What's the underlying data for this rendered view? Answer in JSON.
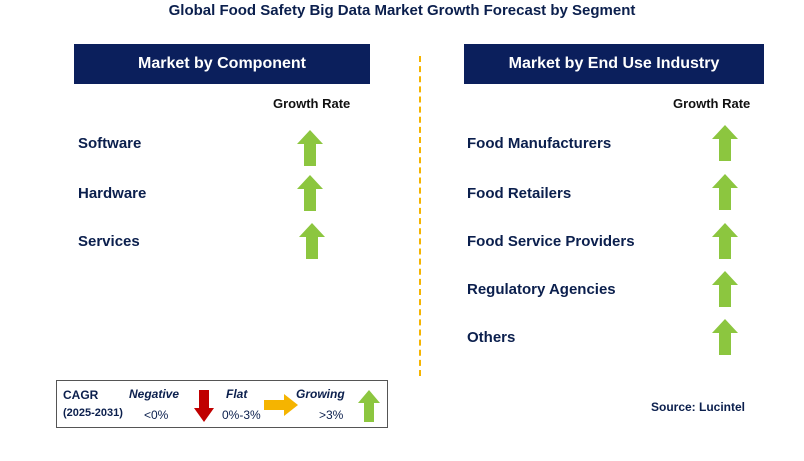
{
  "title": "Global Food Safety Big Data Market Growth Forecast by Segment",
  "left_panel": {
    "header": "Market by Component",
    "growth_label": "Growth Rate",
    "rows": [
      {
        "label": "Software",
        "trend": "growing"
      },
      {
        "label": "Hardware",
        "trend": "growing"
      },
      {
        "label": "Services",
        "trend": "growing"
      }
    ]
  },
  "right_panel": {
    "header": "Market by End Use Industry",
    "growth_label": "Growth Rate",
    "rows": [
      {
        "label": "Food Manufacturers",
        "trend": "growing"
      },
      {
        "label": "Food Retailers",
        "trend": "growing"
      },
      {
        "label": "Food Service Providers",
        "trend": "growing"
      },
      {
        "label": "Regulatory Agencies",
        "trend": "growing"
      },
      {
        "label": "Others",
        "trend": "growing"
      }
    ]
  },
  "legend": {
    "cagr": "CAGR",
    "years": "(2025-2031)",
    "negative_label": "Negative",
    "negative_range": "<0%",
    "flat_label": "Flat",
    "flat_range": "0%-3%",
    "growing_label": "Growing",
    "growing_range": ">3%"
  },
  "source": "Source: Lucintel",
  "colors": {
    "header_bg": "#0b1f5c",
    "growing": "#8cc63f",
    "negative": "#c00000",
    "flat": "#f5b400",
    "divider": "#f5b400"
  }
}
